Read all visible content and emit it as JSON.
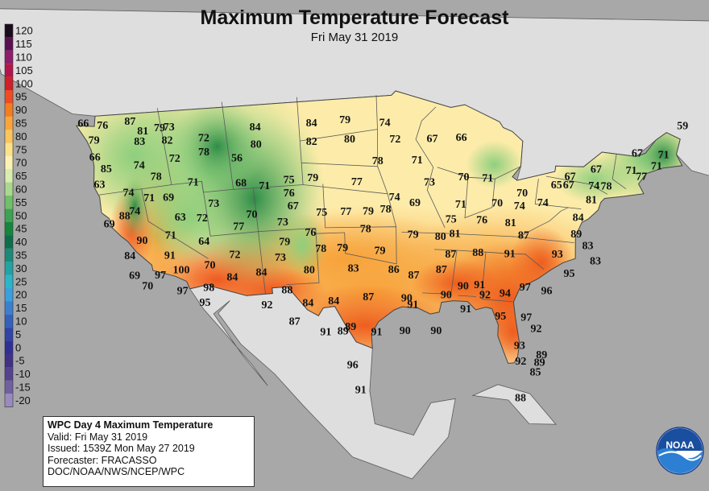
{
  "header": {
    "title": "Maximum Temperature Forecast",
    "subtitle": "Fri May 31 2019"
  },
  "legend": {
    "values": [
      "120",
      "115",
      "110",
      "105",
      "100",
      "95",
      "90",
      "85",
      "80",
      "75",
      "70",
      "65",
      "60",
      "55",
      "50",
      "45",
      "40",
      "35",
      "30",
      "25",
      "20",
      "15",
      "10",
      "5",
      "0",
      "-5",
      "-10",
      "-15",
      "-20"
    ],
    "colors": [
      "#1a0a1a",
      "#5a1050",
      "#8e1d6b",
      "#b0164a",
      "#d01f26",
      "#ef4b24",
      "#f57d20",
      "#f9a53a",
      "#fbc55e",
      "#fde28a",
      "#fbf2b4",
      "#d9edb0",
      "#a9d98d",
      "#70bf6b",
      "#3ca352",
      "#15863e",
      "#0f6e4a",
      "#1a8a7a",
      "#21a3a3",
      "#2bb5c9",
      "#3aa0db",
      "#3b7fcf",
      "#3560bd",
      "#2f43a8",
      "#302e96",
      "#403186",
      "#55428f",
      "#70609e",
      "#9a8bbe"
    ]
  },
  "colors": {
    "water": "#a8a8a8",
    "land_outside": "#dedede",
    "boundary": "#5a5a5a",
    "hot": "#ef6a1f",
    "warm": "#f9b447",
    "mild": "#fdebab",
    "cool_green": "#8dcf7c",
    "dark_green": "#2f8f46"
  },
  "temperatures": [
    {
      "value": "66",
      "lon": -124.1,
      "lat": 48.2
    },
    {
      "value": "76",
      "lon": -122.4,
      "lat": 47.8
    },
    {
      "value": "87",
      "lon": -119.8,
      "lat": 47.8
    },
    {
      "value": "79",
      "lon": -123.5,
      "lat": 46.6
    },
    {
      "value": "81",
      "lon": -118.8,
      "lat": 46.8
    },
    {
      "value": "79",
      "lon": -117.2,
      "lat": 46.9
    },
    {
      "value": "73",
      "lon": -116.3,
      "lat": 46.9
    },
    {
      "value": "83",
      "lon": -119.3,
      "lat": 45.9
    },
    {
      "value": "82",
      "lon": -116.7,
      "lat": 45.7
    },
    {
      "value": "66",
      "lon": -123.8,
      "lat": 45.1
    },
    {
      "value": "72",
      "lon": -113.2,
      "lat": 45.6
    },
    {
      "value": "84",
      "lon": -108.2,
      "lat": 46.2
    },
    {
      "value": "84",
      "lon": -102.8,
      "lat": 46.3
    },
    {
      "value": "79",
      "lon": -99.6,
      "lat": 46.5
    },
    {
      "value": "74",
      "lon": -95.8,
      "lat": 46.2
    },
    {
      "value": "85",
      "lon": -123.0,
      "lat": 43.9
    },
    {
      "value": "74",
      "lon": -119.8,
      "lat": 43.8
    },
    {
      "value": "72",
      "lon": -116.3,
      "lat": 44.0
    },
    {
      "value": "78",
      "lon": -113.4,
      "lat": 44.3
    },
    {
      "value": "80",
      "lon": -108.3,
      "lat": 44.6
    },
    {
      "value": "82",
      "lon": -102.9,
      "lat": 44.6
    },
    {
      "value": "80",
      "lon": -99.2,
      "lat": 44.7
    },
    {
      "value": "72",
      "lon": -94.8,
      "lat": 44.7
    },
    {
      "value": "67",
      "lon": -91.2,
      "lat": 44.8
    },
    {
      "value": "66",
      "lon": -88.4,
      "lat": 45.0
    },
    {
      "value": "63",
      "lon": -124.0,
      "lat": 42.6
    },
    {
      "value": "78",
      "lon": -118.4,
      "lat": 42.6
    },
    {
      "value": "56",
      "lon": -110.3,
      "lat": 43.5
    },
    {
      "value": "74",
      "lon": -121.4,
      "lat": 41.5
    },
    {
      "value": "71",
      "lon": -114.9,
      "lat": 41.7
    },
    {
      "value": "78",
      "lon": -96.5,
      "lat": 42.7
    },
    {
      "value": "71",
      "lon": -92.6,
      "lat": 42.8
    },
    {
      "value": "75",
      "lon": -105.4,
      "lat": 41.2
    },
    {
      "value": "79",
      "lon": -103.0,
      "lat": 41.3
    },
    {
      "value": "71",
      "lon": -119.5,
      "lat": 40.8
    },
    {
      "value": "69",
      "lon": -117.6,
      "lat": 40.6
    },
    {
      "value": "68",
      "lon": -110.2,
      "lat": 41.2
    },
    {
      "value": "71",
      "lon": -107.9,
      "lat": 40.8
    },
    {
      "value": "77",
      "lon": -98.6,
      "lat": 40.8
    },
    {
      "value": "73",
      "lon": -91.3,
      "lat": 40.8
    },
    {
      "value": "70",
      "lon": -87.9,
      "lat": 41.4
    },
    {
      "value": "71",
      "lon": -85.5,
      "lat": 41.4
    },
    {
      "value": "74",
      "lon": -121.2,
      "lat": 39.8
    },
    {
      "value": "76",
      "lon": -105.5,
      "lat": 40.0
    },
    {
      "value": "74",
      "lon": -94.8,
      "lat": 39.4
    },
    {
      "value": "69",
      "lon": -92.7,
      "lat": 38.9
    },
    {
      "value": "69",
      "lon": -124.0,
      "lat": 39.0
    },
    {
      "value": "88",
      "lon": -122.3,
      "lat": 39.5
    },
    {
      "value": "73",
      "lon": -113.2,
      "lat": 39.6
    },
    {
      "value": "67",
      "lon": -105.2,
      "lat": 38.8
    },
    {
      "value": "71",
      "lon": -88.0,
      "lat": 38.9
    },
    {
      "value": "70",
      "lon": -84.3,
      "lat": 39.2
    },
    {
      "value": "74",
      "lon": -82.0,
      "lat": 39.1
    },
    {
      "value": "63",
      "lon": -116.8,
      "lat": 38.7
    },
    {
      "value": "72",
      "lon": -114.6,
      "lat": 38.4
    },
    {
      "value": "70",
      "lon": -109.5,
      "lat": 38.3
    },
    {
      "value": "75",
      "lon": -102.3,
      "lat": 38.1
    },
    {
      "value": "77",
      "lon": -99.8,
      "lat": 38.1
    },
    {
      "value": "79",
      "lon": -97.5,
      "lat": 38.1
    },
    {
      "value": "78",
      "lon": -95.7,
      "lat": 38.3
    },
    {
      "value": "90",
      "lon": -121.1,
      "lat": 37.1
    },
    {
      "value": "71",
      "lon": -118.1,
      "lat": 37.2
    },
    {
      "value": "77",
      "lon": -111.0,
      "lat": 37.3
    },
    {
      "value": "73",
      "lon": -106.4,
      "lat": 37.4
    },
    {
      "value": "75",
      "lon": -88.9,
      "lat": 37.5
    },
    {
      "value": "76",
      "lon": -85.7,
      "lat": 37.6
    },
    {
      "value": "84",
      "lon": -122.7,
      "lat": 35.9
    },
    {
      "value": "64",
      "lon": -114.8,
      "lat": 36.3
    },
    {
      "value": "79",
      "lon": -106.4,
      "lat": 35.6
    },
    {
      "value": "76",
      "lon": -103.6,
      "lat": 36.3
    },
    {
      "value": "78",
      "lon": -97.8,
      "lat": 36.5
    },
    {
      "value": "79",
      "lon": -92.8,
      "lat": 36.0
    },
    {
      "value": "80",
      "lon": -89.9,
      "lat": 35.9
    },
    {
      "value": "81",
      "lon": -88.4,
      "lat": 36.2
    },
    {
      "value": "81",
      "lon": -82.7,
      "lat": 37.5
    },
    {
      "value": "87",
      "lon": -81.2,
      "lat": 36.5
    },
    {
      "value": "91",
      "lon": -118.6,
      "lat": 35.4
    },
    {
      "value": "72",
      "lon": -111.8,
      "lat": 34.8
    },
    {
      "value": "73",
      "lon": -107.0,
      "lat": 34.2
    },
    {
      "value": "78",
      "lon": -102.6,
      "lat": 34.8
    },
    {
      "value": "79",
      "lon": -100.3,
      "lat": 34.8
    },
    {
      "value": "79",
      "lon": -96.3,
      "lat": 34.5
    },
    {
      "value": "87",
      "lon": -88.7,
      "lat": 34.3
    },
    {
      "value": "88",
      "lon": -85.8,
      "lat": 34.6
    },
    {
      "value": "91",
      "lon": -82.4,
      "lat": 34.7
    },
    {
      "value": "69",
      "lon": -122.7,
      "lat": 34.1
    },
    {
      "value": "97",
      "lon": -120.0,
      "lat": 33.8
    },
    {
      "value": "100",
      "lon": -117.7,
      "lat": 34.0
    },
    {
      "value": "70",
      "lon": -114.6,
      "lat": 34.1
    },
    {
      "value": "70",
      "lon": -121.6,
      "lat": 33.0
    },
    {
      "value": "84",
      "lon": -112.4,
      "lat": 32.8
    },
    {
      "value": "84",
      "lon": -109.2,
      "lat": 33.0
    },
    {
      "value": "80",
      "lon": -104.0,
      "lat": 32.9
    },
    {
      "value": "83",
      "lon": -99.2,
      "lat": 32.9
    },
    {
      "value": "86",
      "lon": -94.8,
      "lat": 32.8
    },
    {
      "value": "87",
      "lon": -92.6,
      "lat": 32.3
    },
    {
      "value": "87",
      "lon": -89.6,
      "lat": 32.9
    },
    {
      "value": "97",
      "lon": -118.0,
      "lat": 32.1
    },
    {
      "value": "98",
      "lon": -115.1,
      "lat": 32.1
    },
    {
      "value": "88",
      "lon": -106.6,
      "lat": 31.2
    },
    {
      "value": "95",
      "lon": -115.8,
      "lat": 30.8
    },
    {
      "value": "92",
      "lon": -109.0,
      "lat": 30.0
    },
    {
      "value": "84",
      "lon": -104.4,
      "lat": 29.9
    },
    {
      "value": "84",
      "lon": -101.5,
      "lat": 30.0
    },
    {
      "value": "87",
      "lon": -97.6,
      "lat": 30.3
    },
    {
      "value": "90",
      "lon": -93.3,
      "lat": 30.2
    },
    {
      "value": "90",
      "lon": -87.1,
      "lat": 31.5
    },
    {
      "value": "90",
      "lon": -88.9,
      "lat": 30.6
    },
    {
      "value": "91",
      "lon": -85.3,
      "lat": 31.7
    },
    {
      "value": "92",
      "lon": -84.6,
      "lat": 30.8
    },
    {
      "value": "94",
      "lon": -82.4,
      "lat": 31.1
    },
    {
      "value": "97",
      "lon": -80.3,
      "lat": 31.8
    },
    {
      "value": "96",
      "lon": -77.9,
      "lat": 31.7
    },
    {
      "value": "93",
      "lon": -77.4,
      "lat": 35.1
    },
    {
      "value": "95",
      "lon": -75.8,
      "lat": 33.5
    },
    {
      "value": "83",
      "lon": -73.3,
      "lat": 34.9
    },
    {
      "value": "91",
      "lon": -92.6,
      "lat": 29.6
    },
    {
      "value": "91",
      "lon": -86.6,
      "lat": 29.4
    },
    {
      "value": "95",
      "lon": -82.6,
      "lat": 29.0
    },
    {
      "value": "97",
      "lon": -79.7,
      "lat": 29.1
    },
    {
      "value": "92",
      "lon": -78.4,
      "lat": 28.2
    },
    {
      "value": "87",
      "lon": -106.1,
      "lat": 28.3
    },
    {
      "value": "91",
      "lon": -102.6,
      "lat": 27.2
    },
    {
      "value": "89",
      "lon": -99.7,
      "lat": 27.6
    },
    {
      "value": "89",
      "lon": -100.6,
      "lat": 27.2
    },
    {
      "value": "91",
      "lon": -96.7,
      "lat": 27.1
    },
    {
      "value": "90",
      "lon": -93.4,
      "lat": 27.2
    },
    {
      "value": "90",
      "lon": -89.8,
      "lat": 27.3
    },
    {
      "value": "93",
      "lon": -80.0,
      "lat": 26.5
    },
    {
      "value": "92",
      "lon": -79.6,
      "lat": 25.1
    },
    {
      "value": "89",
      "lon": -77.3,
      "lat": 25.9
    },
    {
      "value": "89",
      "lon": -77.4,
      "lat": 25.2
    },
    {
      "value": "85",
      "lon": -77.7,
      "lat": 24.3
    },
    {
      "value": "88",
      "lon": -79.0,
      "lat": 21.8
    },
    {
      "value": "96",
      "lon": -99.6,
      "lat": 24.1
    },
    {
      "value": "91",
      "lon": -98.7,
      "lat": 21.8
    },
    {
      "value": "59",
      "lon": -67.8,
      "lat": 48.0
    },
    {
      "value": "67",
      "lon": -71.4,
      "lat": 45.0
    },
    {
      "value": "71",
      "lon": -68.9,
      "lat": 45.2
    },
    {
      "value": "71",
      "lon": -69.3,
      "lat": 44.1
    },
    {
      "value": "67",
      "lon": -75.0,
      "lat": 43.1
    },
    {
      "value": "71",
      "lon": -71.6,
      "lat": 43.4
    },
    {
      "value": "77",
      "lon": -70.5,
      "lat": 43.0
    },
    {
      "value": "67",
      "lon": -77.4,
      "lat": 42.2
    },
    {
      "value": "74",
      "lon": -74.9,
      "lat": 41.6
    },
    {
      "value": "78",
      "lon": -73.7,
      "lat": 41.7
    },
    {
      "value": "65",
      "lon": -78.6,
      "lat": 41.3
    },
    {
      "value": "67",
      "lon": -77.4,
      "lat": 41.4
    },
    {
      "value": "81",
      "lon": -74.9,
      "lat": 40.3
    },
    {
      "value": "70",
      "lon": -81.9,
      "lat": 40.3
    },
    {
      "value": "74",
      "lon": -79.7,
      "lat": 39.6
    },
    {
      "value": "84",
      "lon": -75.9,
      "lat": 38.6
    },
    {
      "value": "89",
      "lon": -75.8,
      "lat": 37.1
    },
    {
      "value": "83",
      "lon": -74.4,
      "lat": 36.2
    }
  ],
  "info": {
    "line1": "WPC Day 4 Maximum Temperature",
    "line2": "Valid: Fri May 31 2019",
    "line3": "Issued: 1539Z Mon May 27 2019",
    "line4": "Forecaster: FRACASSO",
    "line5": "DOC/NOAA/NWS/NCEP/WPC"
  },
  "logo": {
    "text": "NOAA"
  }
}
